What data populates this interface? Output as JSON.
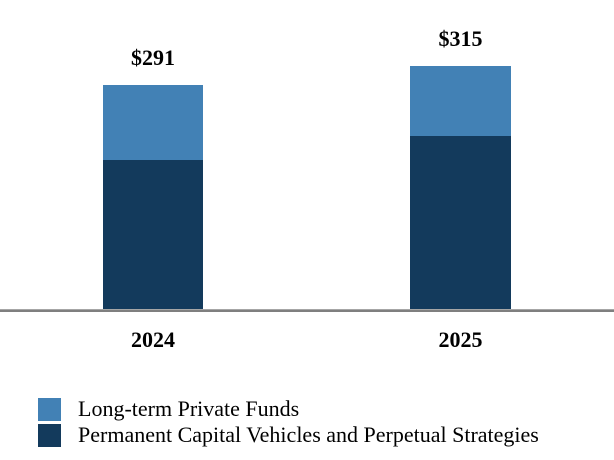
{
  "chart_data": {
    "type": "bar",
    "stacked": true,
    "title": "",
    "xlabel": "",
    "ylabel": "",
    "categories": [
      "2024",
      "2025"
    ],
    "series": [
      {
        "name": "Long-term Private Funds",
        "color": "#4281B5",
        "values": [
          97,
          90
        ]
      },
      {
        "name": "Permanent Capital Vehicles and Perpetual Strategies",
        "color": "#133A5C",
        "values": [
          194,
          225
        ]
      }
    ],
    "totals": [
      291,
      315
    ],
    "total_labels": [
      "$291",
      "$315"
    ],
    "y_axis_visible": false,
    "grid": false,
    "legend_position": "bottom-left",
    "axis_line_color": "#7F7F7F",
    "background_color": "#FFFFFF",
    "text_color": "#000000"
  }
}
